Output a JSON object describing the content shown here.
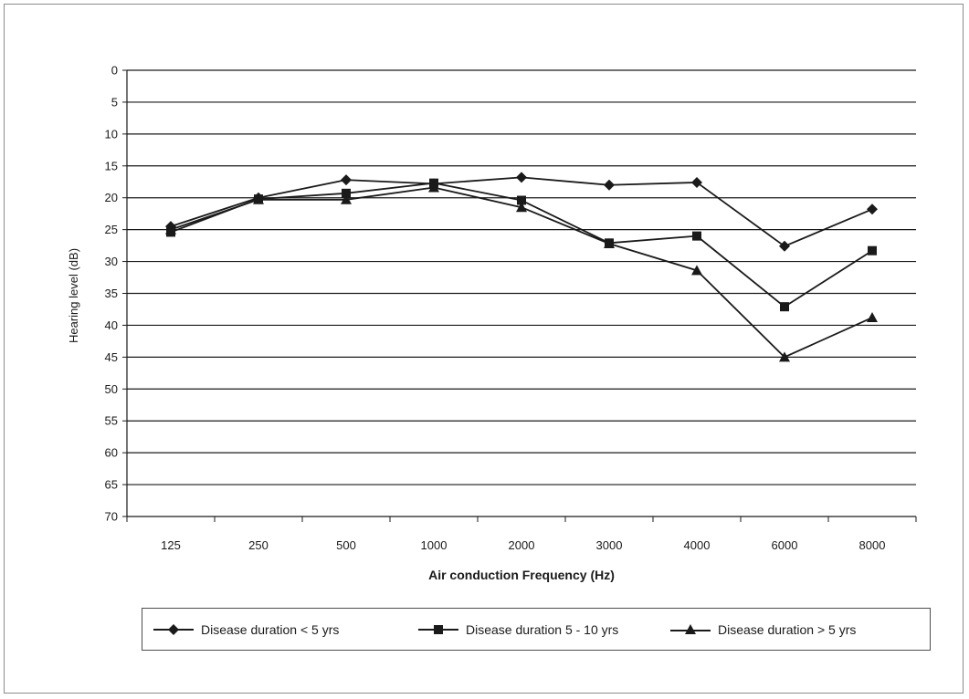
{
  "chart_data": {
    "type": "line",
    "title": "",
    "xlabel": "Air conduction Frequency (Hz)",
    "ylabel": "Hearing level (dB)",
    "categories": [
      "125",
      "250",
      "500",
      "1000",
      "2000",
      "3000",
      "4000",
      "6000",
      "8000"
    ],
    "y_ticks": [
      "0",
      "5",
      "10",
      "15",
      "20",
      "25",
      "30",
      "35",
      "40",
      "45",
      "50",
      "55",
      "60",
      "65",
      "70"
    ],
    "ylim": [
      0,
      70
    ],
    "y_inverted": true,
    "grid": true,
    "legend_position": "bottom",
    "series": [
      {
        "name": "Disease duration < 5 yrs",
        "marker": "diamond",
        "values": [
          24.5,
          20.0,
          17.2,
          17.8,
          16.8,
          18.0,
          17.6,
          27.6,
          21.8
        ]
      },
      {
        "name": "Disease duration 5 - 10 yrs",
        "marker": "square",
        "values": [
          25.4,
          20.2,
          19.3,
          17.7,
          20.4,
          27.1,
          26.0,
          37.1,
          28.3
        ]
      },
      {
        "name": "Disease duration > 5 yrs",
        "marker": "triangle",
        "values": [
          25.0,
          20.3,
          20.3,
          18.4,
          21.5,
          27.2,
          31.4,
          45.0,
          38.8
        ]
      }
    ]
  },
  "colors": {
    "line": "#1a1a1a",
    "grid": "#1a1a1a"
  }
}
